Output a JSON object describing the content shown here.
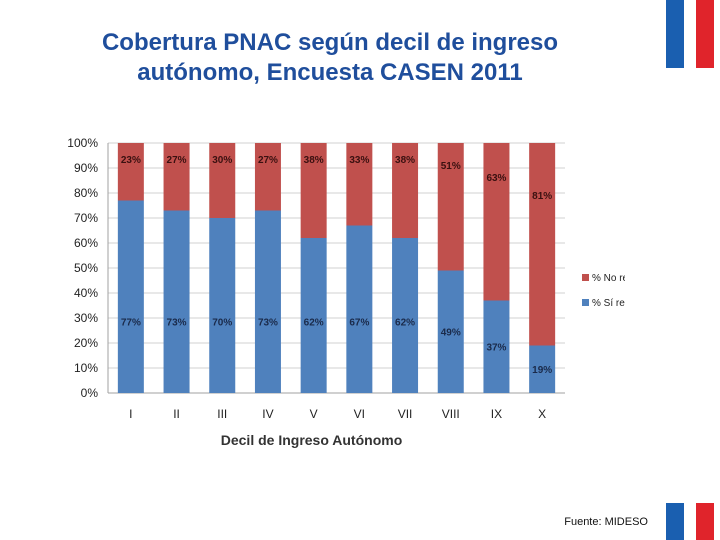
{
  "page": {
    "title_line1": "Cobertura PNAC según decil de ingreso",
    "title_line2": "autónomo, Encuesta CASEN 2011",
    "source": "Fuente: MIDESO"
  },
  "colors": {
    "title": "#1f4e9c",
    "series_si": "#4f81bd",
    "series_no": "#c0504d",
    "flag_blue": "#1a5fb0",
    "flag_red": "#e0242b"
  },
  "chart_data": {
    "type": "bar",
    "stacked": true,
    "title": "",
    "xlabel": "Decil de Ingreso Autónomo",
    "ylabel": "",
    "ylim": [
      0,
      100
    ],
    "yticks": [
      "0%",
      "10%",
      "20%",
      "30%",
      "40%",
      "50%",
      "60%",
      "70%",
      "80%",
      "90%",
      "100%"
    ],
    "categories": [
      "I",
      "II",
      "III",
      "IV",
      "V",
      "VI",
      "VII",
      "VIII",
      "IX",
      "X"
    ],
    "series": [
      {
        "name": "% Sí recibe",
        "values": [
          77,
          73,
          70,
          73,
          62,
          67,
          62,
          49,
          37,
          19
        ],
        "labels": [
          "77%",
          "73%",
          "70%",
          "73%",
          "62%",
          "67%",
          "62%",
          "49%",
          "37%",
          "19%"
        ]
      },
      {
        "name": "% No recibe",
        "values": [
          23,
          27,
          30,
          27,
          38,
          33,
          38,
          51,
          63,
          81
        ],
        "labels": [
          "23%",
          "27%",
          "30%",
          "27%",
          "38%",
          "33%",
          "38%",
          "51%",
          "63%",
          "81%"
        ]
      }
    ],
    "legend": [
      "% No recibe",
      "% Sí recibe"
    ],
    "grid": true
  }
}
